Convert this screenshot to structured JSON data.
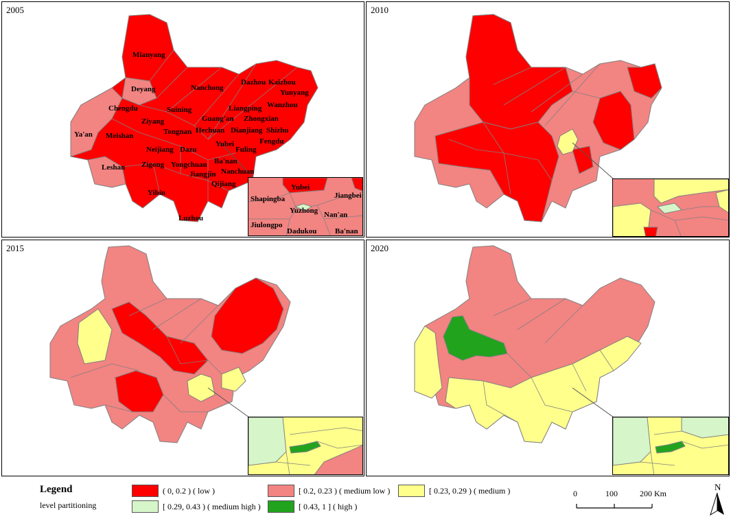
{
  "panels": [
    {
      "year": "2005"
    },
    {
      "year": "2010"
    },
    {
      "year": "2015"
    },
    {
      "year": "2020"
    }
  ],
  "city_labels_2005": [
    "Mianyang",
    "Deyang",
    "Nanchong",
    "Dazhou",
    "Kaizhou",
    "Yunyang",
    "Chengdu",
    "Suining",
    "Liangping",
    "Wanzhou",
    "Zhongxian",
    "Ziyang",
    "Guang'an",
    "Ya'an",
    "Meishan",
    "Tongnan",
    "Hechuan",
    "Dianjiang",
    "Shizhu",
    "Yubei",
    "Fengdu",
    "Neijiang",
    "Dazu",
    "Fuling",
    "Leshan",
    "Zigong",
    "Yongchuan",
    "Ba'nan",
    "Jiangjin",
    "Nanchuan",
    "Qijiang",
    "Yibin",
    "Luzhou"
  ],
  "inset_labels_2005": [
    "Yubei",
    "Jiangbei",
    "Shapingba",
    "Yuzhong",
    "Nan'an",
    "Jiulongpo",
    "Dadukou",
    "Ba'nan"
  ],
  "colors": {
    "low": "#ff0000",
    "medium_low": "#f28482",
    "medium": "#ffff8c",
    "medium_high": "#d6f5c8",
    "high": "#22a31e",
    "boundary": "#808080"
  },
  "legend": {
    "title": "Legend",
    "subtitle": "level partitioning",
    "items": [
      {
        "label": "( 0, 0.2 ) ( low )",
        "color": "#ff0000"
      },
      {
        "label": "[ 0.2, 0.23 ) ( medium low )",
        "color": "#f28482"
      },
      {
        "label": "[ 0.23, 0.29 ) ( medium )",
        "color": "#ffff8c"
      },
      {
        "label": "[ 0.29, 0.43 ) ( medium high )",
        "color": "#d6f5c8"
      },
      {
        "label": "[ 0.43, 1 ] ( high )",
        "color": "#22a31e"
      }
    ]
  },
  "scale": {
    "ticks": [
      "0",
      "100",
      "200 Km"
    ]
  },
  "north": "N"
}
